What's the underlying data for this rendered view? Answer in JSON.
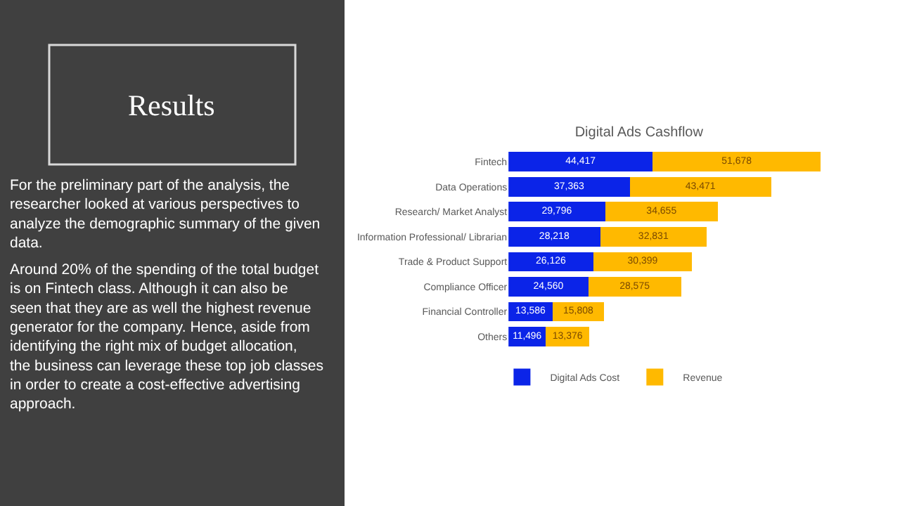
{
  "chart_data": {
    "type": "bar",
    "orientation": "horizontal",
    "stacked": true,
    "title": "Digital Ads Cashflow",
    "categories": [
      "Fintech",
      "Data Operations",
      "Research/ Market Analyst",
      "Information Professional/ Librarian",
      "Trade & Product Support",
      "Compliance Officer",
      "Financial Controller",
      "Others"
    ],
    "series": [
      {
        "name": "Digital Ads Cost",
        "color": "#0b24e8",
        "values": [
          44417,
          37363,
          29796,
          28218,
          26126,
          24560,
          13586,
          11496
        ],
        "value_labels": [
          "44,417",
          "37,363",
          "29,796",
          "28,218",
          "26,126",
          "24,560",
          "13,586",
          "11,496"
        ]
      },
      {
        "name": "Revenue",
        "color": "#ffb900",
        "values": [
          51678,
          43471,
          34655,
          32831,
          30399,
          28575,
          15808,
          13376
        ],
        "value_labels": [
          "51,678",
          "43,471",
          "34,655",
          "32,831",
          "30,399",
          "28,575",
          "15,808",
          "13,376"
        ]
      }
    ],
    "legend": "bottom",
    "annotations": [
      "Results",
      "For the preliminary part of the analysis, the researcher looked at various perspectives to analyze the demographic summary of the given data.",
      "Around 20% of the spending of the total budget is on Fintech class. Although it can also be seen that they are as well the highest revenue generator for the company. Hence, aside from identifying the right mix of budget allocation, the business can leverage these top job classes in order to create a cost-effective advertising approach."
    ]
  }
}
